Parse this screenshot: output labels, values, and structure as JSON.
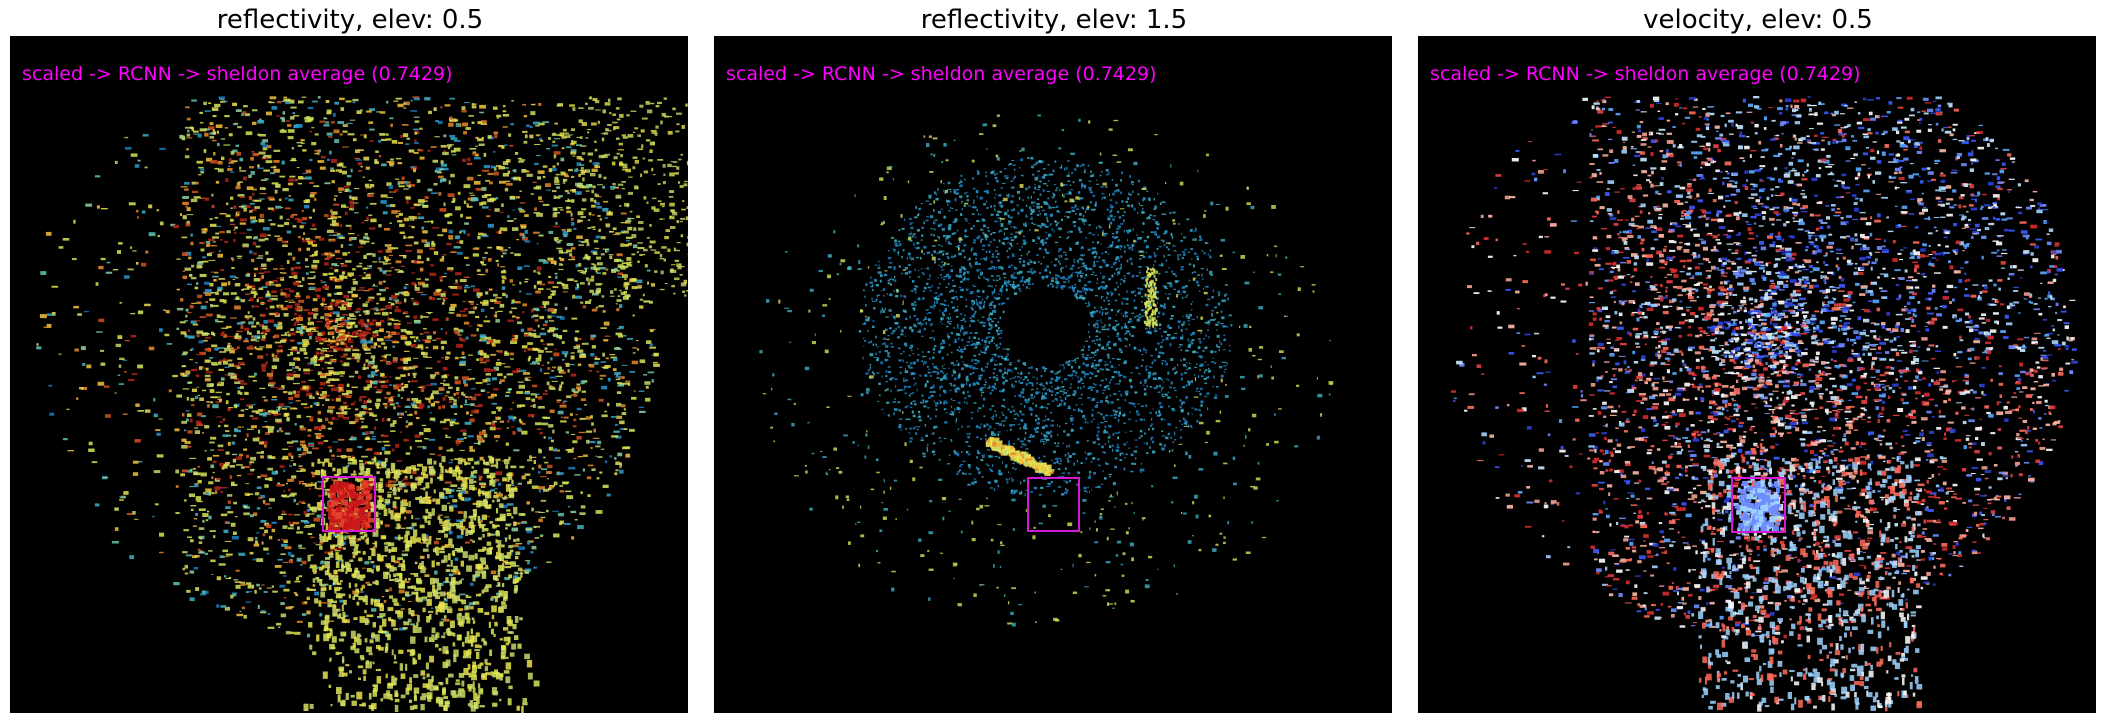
{
  "colors": {
    "annotation": "#ff00ff",
    "detection_box": "#d41ad4",
    "background": "#000000"
  },
  "panels": [
    {
      "title": "reflectivity, elev: 0.5",
      "annotation": "scaled -> RCNN -> sheldon average (0.7429)",
      "colormap": "reflectivity"
    },
    {
      "title": "reflectivity, elev: 1.5",
      "annotation": "scaled -> RCNN -> sheldon average (0.7429)",
      "colormap": "reflectivity"
    },
    {
      "title": "velocity, elev: 0.5",
      "annotation": "scaled -> RCNN -> sheldon average (0.7429)",
      "colormap": "velocity"
    }
  ]
}
